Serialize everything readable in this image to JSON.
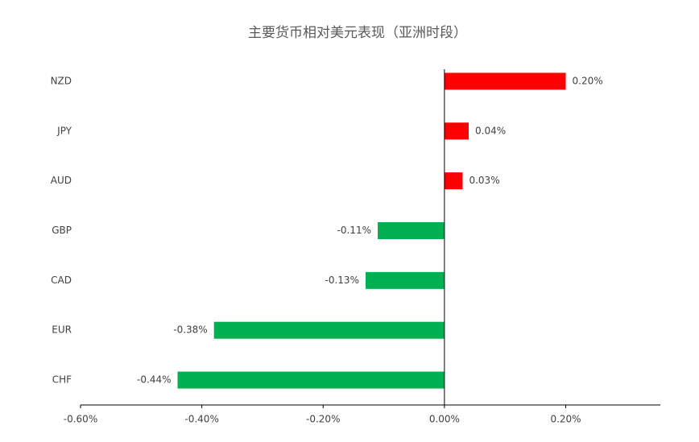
{
  "chart_data": {
    "type": "barh",
    "title": "主要货币相对美元表现（亚洲时段）",
    "categories": [
      "NZD",
      "JPY",
      "AUD",
      "GBP",
      "CAD",
      "EUR",
      "CHF"
    ],
    "values": [
      0.2,
      0.04,
      0.03,
      -0.11,
      -0.13,
      -0.38,
      -0.44
    ],
    "value_labels": [
      "0.20%",
      "0.04%",
      "0.03%",
      "-0.11%",
      "-0.13%",
      "-0.38%",
      "-0.44%"
    ],
    "positive_color": "#ff0000",
    "negative_color": "#00b050",
    "xlim": [
      -0.6,
      0.356
    ],
    "xticks": [
      {
        "value": -0.6,
        "label": "-0.60%"
      },
      {
        "value": -0.4,
        "label": "-0.40%"
      },
      {
        "value": -0.2,
        "label": "-0.20%"
      },
      {
        "value": 0,
        "label": "0.00%"
      },
      {
        "value": 0.2,
        "label": "0.20%"
      }
    ],
    "grid": false
  }
}
